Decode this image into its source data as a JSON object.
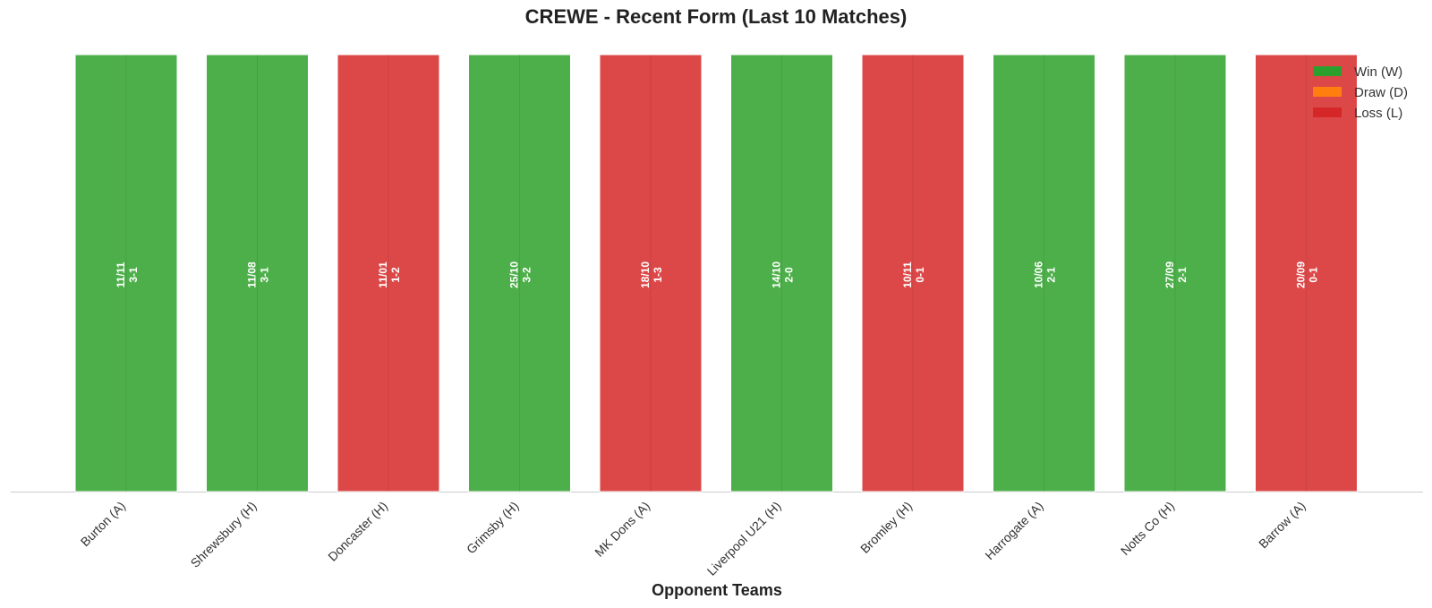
{
  "chart_data": {
    "type": "bar",
    "title": "CREWE - Recent Form (Last 10 Matches)",
    "xlabel": "Opponent Teams",
    "ylabel": "",
    "categories": [
      "Burton (A)",
      "Shrewsbury (H)",
      "Doncaster (H)",
      "Grimsby (H)",
      "MK Dons (A)",
      "Liverpool U21 (H)",
      "Bromley (H)",
      "Harrogate (A)",
      "Notts Co (H)",
      "Barrow (A)"
    ],
    "results": [
      "W",
      "W",
      "L",
      "W",
      "L",
      "W",
      "L",
      "W",
      "W",
      "L"
    ],
    "values": [
      1,
      1,
      1,
      1,
      1,
      1,
      1,
      1,
      1,
      1
    ],
    "dates": [
      "11/11",
      "11/08",
      "11/01",
      "25/10",
      "18/10",
      "14/10",
      "10/11",
      "10/06",
      "27/09",
      "20/09"
    ],
    "scores": [
      "3-1",
      "3-1",
      "1-2",
      "3-2",
      "1-3",
      "2-0",
      "0-1",
      "2-1",
      "2-1",
      "0-1"
    ],
    "ylim": [
      0,
      1
    ],
    "grid": false,
    "legend": {
      "placement": "top-right",
      "entries": [
        {
          "label": "Win (W)",
          "key": "W",
          "color": "#2ca02c"
        },
        {
          "label": "Draw (D)",
          "key": "D",
          "color": "#ff7f0e"
        },
        {
          "label": "Loss (L)",
          "key": "L",
          "color": "#d62728"
        }
      ]
    },
    "colors": {
      "W": "#4daf4a",
      "D": "#ff7f0e",
      "L": "#dc4848"
    }
  }
}
